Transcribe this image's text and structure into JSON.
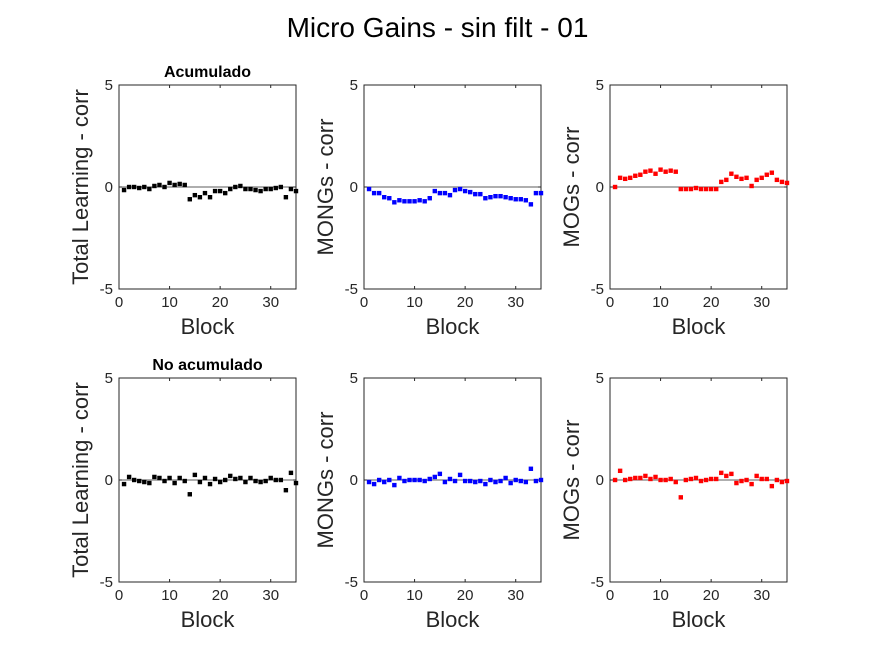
{
  "figure": {
    "title": "Micro Gains - sin filt - 01"
  },
  "chart_data": [
    {
      "type": "scatter",
      "panel": "row1-col1",
      "title": "Acumulado",
      "xlabel": "Block",
      "ylabel": "Total Learning - corr",
      "xlim": [
        0,
        35
      ],
      "ylim": [
        -5,
        5
      ],
      "xticks": [
        "0",
        "10",
        "20",
        "30"
      ],
      "yticks": [
        "5",
        "0",
        "-5"
      ],
      "color": "#000000",
      "zero_line": true,
      "grid": false,
      "x": [
        1,
        2,
        3,
        4,
        5,
        6,
        7,
        8,
        9,
        10,
        11,
        12,
        13,
        14,
        15,
        16,
        17,
        18,
        19,
        20,
        21,
        22,
        23,
        24,
        25,
        26,
        27,
        28,
        29,
        30,
        31,
        32,
        33,
        34,
        35
      ],
      "y": [
        -0.15,
        0.0,
        0.0,
        -0.05,
        0.0,
        -0.1,
        0.05,
        0.1,
        0.0,
        0.2,
        0.1,
        0.15,
        0.1,
        -0.6,
        -0.4,
        -0.5,
        -0.3,
        -0.5,
        -0.2,
        -0.2,
        -0.3,
        -0.1,
        0.0,
        0.05,
        -0.1,
        -0.1,
        -0.15,
        -0.2,
        -0.1,
        -0.1,
        -0.05,
        0.0,
        -0.5,
        -0.1,
        -0.2
      ]
    },
    {
      "type": "scatter",
      "panel": "row1-col2",
      "title": "",
      "xlabel": "Block",
      "ylabel": "MONGs - corr",
      "xlim": [
        0,
        35
      ],
      "ylim": [
        -5,
        5
      ],
      "xticks": [
        "0",
        "10",
        "20",
        "30"
      ],
      "yticks": [
        "5",
        "0",
        "-5"
      ],
      "color": "#0000ff",
      "zero_line": true,
      "grid": false,
      "x": [
        1,
        2,
        3,
        4,
        5,
        6,
        7,
        8,
        9,
        10,
        11,
        12,
        13,
        14,
        15,
        16,
        17,
        18,
        19,
        20,
        21,
        22,
        23,
        24,
        25,
        26,
        27,
        28,
        29,
        30,
        31,
        32,
        33,
        34,
        35
      ],
      "y": [
        -0.1,
        -0.3,
        -0.3,
        -0.5,
        -0.55,
        -0.75,
        -0.65,
        -0.7,
        -0.7,
        -0.7,
        -0.65,
        -0.7,
        -0.55,
        -0.2,
        -0.3,
        -0.3,
        -0.4,
        -0.15,
        -0.1,
        -0.2,
        -0.25,
        -0.35,
        -0.35,
        -0.55,
        -0.5,
        -0.45,
        -0.45,
        -0.5,
        -0.55,
        -0.6,
        -0.6,
        -0.65,
        -0.85,
        -0.3,
        -0.3
      ]
    },
    {
      "type": "scatter",
      "panel": "row1-col3",
      "title": "",
      "xlabel": "Block",
      "ylabel": "MOGs - corr",
      "xlim": [
        0,
        35
      ],
      "ylim": [
        -5,
        5
      ],
      "xticks": [
        "0",
        "10",
        "20",
        "30"
      ],
      "yticks": [
        "5",
        "0",
        "-5"
      ],
      "color": "#ff0000",
      "zero_line": true,
      "grid": false,
      "x": [
        1,
        2,
        3,
        4,
        5,
        6,
        7,
        8,
        9,
        10,
        11,
        12,
        13,
        14,
        15,
        16,
        17,
        18,
        19,
        20,
        21,
        22,
        23,
        24,
        25,
        26,
        27,
        28,
        29,
        30,
        31,
        32,
        33,
        34,
        35
      ],
      "y": [
        0.0,
        0.45,
        0.4,
        0.45,
        0.55,
        0.6,
        0.75,
        0.8,
        0.65,
        0.85,
        0.75,
        0.8,
        0.75,
        -0.1,
        -0.1,
        -0.1,
        -0.05,
        -0.1,
        -0.1,
        -0.1,
        -0.1,
        0.25,
        0.35,
        0.65,
        0.5,
        0.4,
        0.45,
        0.05,
        0.35,
        0.45,
        0.6,
        0.7,
        0.35,
        0.25,
        0.2
      ]
    },
    {
      "type": "scatter",
      "panel": "row2-col1",
      "title": "No acumulado",
      "xlabel": "Block",
      "ylabel": "Total Learning - corr",
      "xlim": [
        0,
        35
      ],
      "ylim": [
        -5,
        5
      ],
      "xticks": [
        "0",
        "10",
        "20",
        "30"
      ],
      "yticks": [
        "5",
        "0",
        "-5"
      ],
      "color": "#000000",
      "zero_line": true,
      "grid": false,
      "x": [
        1,
        2,
        3,
        4,
        5,
        6,
        7,
        8,
        9,
        10,
        11,
        12,
        13,
        14,
        15,
        16,
        17,
        18,
        19,
        20,
        21,
        22,
        23,
        24,
        25,
        26,
        27,
        28,
        29,
        30,
        31,
        32,
        33,
        34,
        35
      ],
      "y": [
        -0.2,
        0.15,
        0.0,
        -0.05,
        -0.1,
        -0.15,
        0.15,
        0.1,
        -0.05,
        0.1,
        -0.15,
        0.1,
        -0.05,
        -0.7,
        0.25,
        -0.1,
        0.1,
        -0.2,
        0.05,
        -0.1,
        0.0,
        0.2,
        0.05,
        0.1,
        -0.1,
        0.1,
        -0.05,
        -0.1,
        -0.05,
        0.1,
        0.0,
        0.0,
        -0.5,
        0.35,
        -0.15
      ]
    },
    {
      "type": "scatter",
      "panel": "row2-col2",
      "title": "",
      "xlabel": "Block",
      "ylabel": "MONGs - corr",
      "xlim": [
        0,
        35
      ],
      "ylim": [
        -5,
        5
      ],
      "xticks": [
        "0",
        "10",
        "20",
        "30"
      ],
      "yticks": [
        "5",
        "0",
        "-5"
      ],
      "color": "#0000ff",
      "zero_line": true,
      "grid": false,
      "x": [
        1,
        2,
        3,
        4,
        5,
        6,
        7,
        8,
        9,
        10,
        11,
        12,
        13,
        14,
        15,
        16,
        17,
        18,
        19,
        20,
        21,
        22,
        23,
        24,
        25,
        26,
        27,
        28,
        29,
        30,
        31,
        32,
        33,
        34,
        35
      ],
      "y": [
        -0.1,
        -0.2,
        0.0,
        -0.1,
        0.0,
        -0.25,
        0.1,
        -0.05,
        0.0,
        0.0,
        0.0,
        -0.05,
        0.05,
        0.15,
        0.3,
        -0.1,
        0.05,
        -0.05,
        0.25,
        -0.05,
        -0.05,
        -0.1,
        -0.05,
        -0.2,
        0.0,
        -0.1,
        -0.05,
        0.1,
        -0.15,
        0.0,
        -0.05,
        -0.1,
        0.55,
        -0.05,
        0.0
      ]
    },
    {
      "type": "scatter",
      "panel": "row2-col3",
      "title": "",
      "xlabel": "Block",
      "ylabel": "MOGs - corr",
      "xlim": [
        0,
        35
      ],
      "ylim": [
        -5,
        5
      ],
      "xticks": [
        "0",
        "10",
        "20",
        "30"
      ],
      "yticks": [
        "5",
        "0",
        "-5"
      ],
      "color": "#ff0000",
      "zero_line": true,
      "grid": false,
      "x": [
        1,
        2,
        3,
        4,
        5,
        6,
        7,
        8,
        9,
        10,
        11,
        12,
        13,
        14,
        15,
        16,
        17,
        18,
        19,
        20,
        21,
        22,
        23,
        24,
        25,
        26,
        27,
        28,
        29,
        30,
        31,
        32,
        33,
        34,
        35
      ],
      "y": [
        0.0,
        0.45,
        0.0,
        0.05,
        0.1,
        0.1,
        0.2,
        0.05,
        0.15,
        0.0,
        0.0,
        0.05,
        -0.1,
        -0.85,
        0.0,
        0.05,
        0.1,
        -0.05,
        0.0,
        0.05,
        0.05,
        0.35,
        0.2,
        0.3,
        -0.15,
        -0.05,
        0.0,
        -0.2,
        0.2,
        0.05,
        0.05,
        -0.3,
        0.0,
        -0.1,
        -0.05
      ]
    }
  ]
}
